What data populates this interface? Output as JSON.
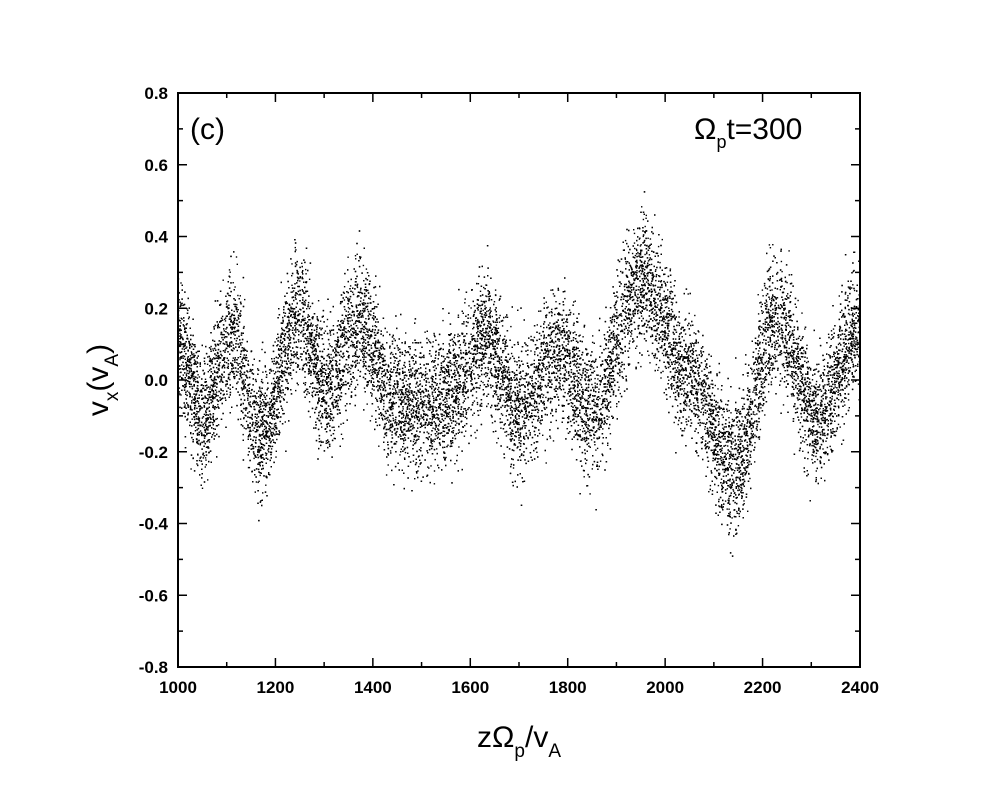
{
  "chart_data": {
    "type": "scatter",
    "title": "",
    "panel_label": "(c)",
    "annotation": {
      "base": "Ω",
      "sub": "p",
      "rest": "t=300"
    },
    "xlabel": {
      "base": "zΩ",
      "sub1": "p",
      "mid": "/v",
      "sub2": "A"
    },
    "ylabel": {
      "base": "v",
      "sub1": "x",
      "mid": "(v",
      "sub2": "A",
      "end": ")"
    },
    "xlim": [
      1000,
      2400
    ],
    "ylim": [
      -0.8,
      0.8
    ],
    "xticks": [
      1000,
      1200,
      1400,
      1600,
      1800,
      2000,
      2200,
      2400
    ],
    "yticks": [
      -0.8,
      -0.6,
      -0.4,
      -0.2,
      0.0,
      0.2,
      0.4,
      0.6,
      0.8
    ],
    "xtick_labels": [
      "1000",
      "1200",
      "1400",
      "1600",
      "1800",
      "2000",
      "2200",
      "2400"
    ],
    "ytick_labels": [
      "-0.8",
      "-0.6",
      "-0.4",
      "-0.2",
      "0.0",
      "0.2",
      "0.4",
      "0.6",
      "0.8"
    ],
    "grid": false,
    "point_color": "#000000",
    "series_spread": 0.09,
    "points_per_unit_x": 14,
    "centerline": {
      "x": [
        1000,
        1050,
        1110,
        1170,
        1250,
        1300,
        1375,
        1440,
        1500,
        1560,
        1630,
        1700,
        1780,
        1850,
        1950,
        2050,
        2140,
        2230,
        2310,
        2400
      ],
      "y": [
        0.12,
        -0.1,
        0.12,
        -0.15,
        0.18,
        -0.02,
        0.16,
        -0.05,
        -0.07,
        -0.04,
        0.12,
        -0.09,
        0.08,
        -0.08,
        0.28,
        0.02,
        -0.25,
        0.18,
        -0.1,
        0.15
      ]
    }
  }
}
